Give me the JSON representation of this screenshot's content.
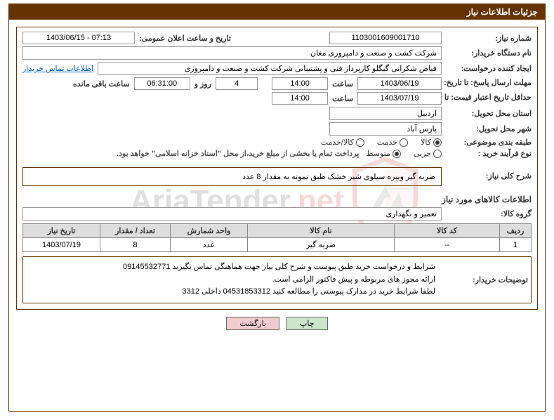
{
  "title": "جزئیات اطلاعات نیاز",
  "watermark": {
    "text_main": "AriaTender",
    "text_suffix": ".net",
    "shield_stroke": "#cc3333",
    "shield_inner": "#888888"
  },
  "fields": {
    "need_number_label": "شماره نیاز:",
    "need_number": "1103001609001710",
    "announce_label": "تاریخ و ساعت اعلان عمومی:",
    "announce_value": "1403/06/15 - 07:13",
    "buyer_org_label": "نام دستگاه خریدار:",
    "buyer_org": "شرکت کشت و صنعت و دامپروری مغان",
    "creator_label": "ایجاد کننده درخواست:",
    "creator": "فیاض شکرانی گیگلو کارپرداز فنی و پشتیبانی شرکت کشت و صنعت و دامپروری",
    "contact_link": "اطلاعات تماس خریدار",
    "deadline_row_label": "مهلت ارسال پاسخ: تا تاریخ:",
    "deadline_date": "1403/06/19",
    "hour_label": "ساعت",
    "deadline_hour": "14:00",
    "days_remaining": "4",
    "days_and_label": "روز و",
    "time_remaining": "06:31:00",
    "time_remaining_suffix": "ساعت باقی مانده",
    "validity_row_label": "حداقل تاریخ اعتبار قیمت: تا تاریخ:",
    "validity_date": "1403/07/19",
    "validity_hour": "14:00",
    "province_label": "استان محل تحویل:",
    "province": "اردبیل",
    "city_label": "شهر محل تحویل:",
    "city": "پارس آباد",
    "subject_class_label": "طبقه بندی موضوعی:",
    "radio_goods": "کالا",
    "radio_service": "خدمت",
    "radio_both": "کالا/خدمت",
    "process_label": "نوع فرآیند خرید :",
    "radio_partial": "جزیی",
    "radio_medium": "متوسط",
    "process_note": "پرداخت تمام یا بخشی از مبلغ خرید،از محل \"اسناد خزانه اسلامی\" خواهد بود."
  },
  "need_summary_label": "شرح کلی نیاز:",
  "need_summary_text": "ضربه گیر ویبره سیلوی شیر خشک طبق نمونه به مقدار 8 عدد",
  "goods_section_title": "اطلاعات کالاهای مورد نیاز",
  "group_label": "گروه کالا:",
  "group_value": "تعمیر و نگهداری",
  "table": {
    "headers": {
      "row": "ردیف",
      "code": "کد کالا",
      "name": "نام کالا",
      "unit": "واحد شمارش",
      "qty": "تعداد / مقدار",
      "date": "تاریخ نیاز"
    },
    "rows": [
      {
        "row": "1",
        "code": "--",
        "name": "ضربه گیر",
        "unit": "عدد",
        "qty": "8",
        "date": "1403/07/19"
      }
    ]
  },
  "buyer_notes_label": "توضیحات خریدار:",
  "buyer_notes_lines": [
    "شرایط و درخواست خرید طبق پیوست و شرح کلی نیاز  جهت هماهنگی تماس بگیرید 09145532771",
    "ارائه مجوز های مربوطه و پیش فاکتور الزامی است.",
    "لطفا شرایط خرید در مدارک پیوستی را مطالعه کنید  04531853312   داخلی  3312"
  ],
  "buttons": {
    "print": "چاپ",
    "back": "بازگشت"
  },
  "selections": {
    "subject": "goods",
    "process": "medium"
  }
}
